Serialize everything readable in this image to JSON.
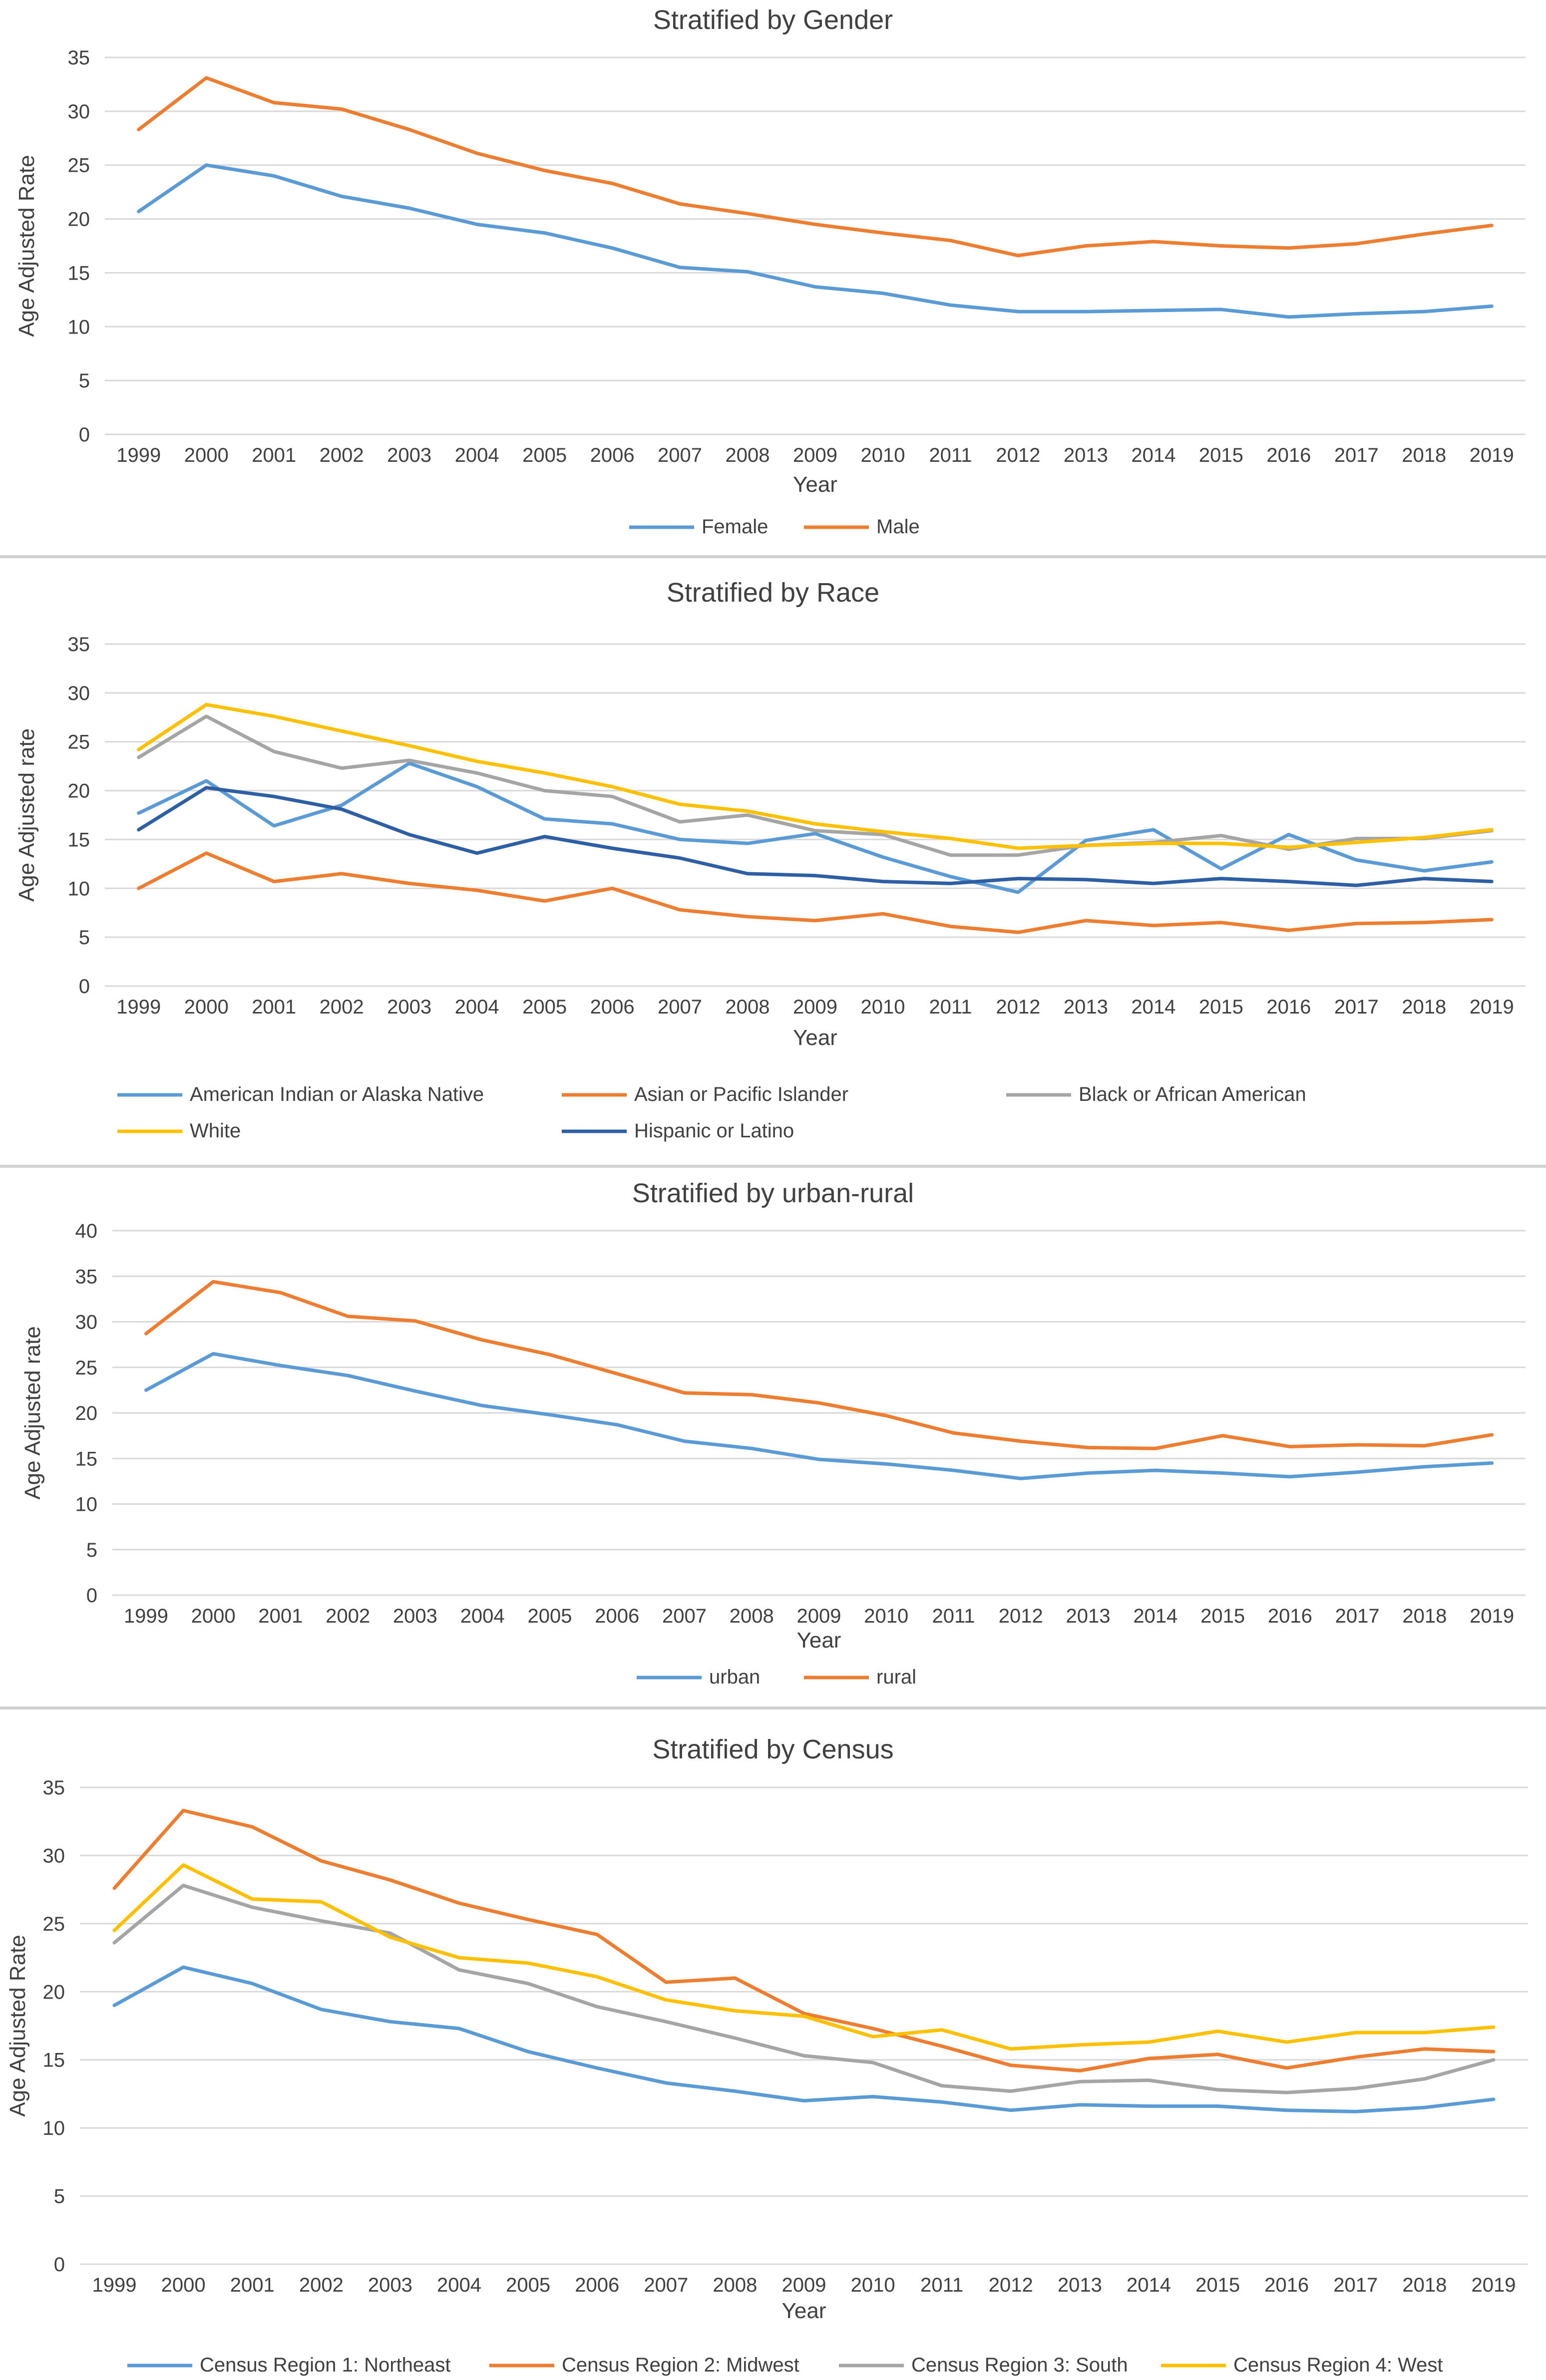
{
  "chart_data": [
    {
      "type": "line",
      "title": "Stratified by Gender",
      "xlabel": "Year",
      "ylabel": "Age Adjusted Rate",
      "ylim": [
        0,
        35
      ],
      "yticks": [
        0,
        5,
        10,
        15,
        20,
        25,
        30,
        35
      ],
      "categories": [
        "1999",
        "2000",
        "2001",
        "2002",
        "2003",
        "2004",
        "2005",
        "2006",
        "2007",
        "2008",
        "2009",
        "2010",
        "2011",
        "2012",
        "2013",
        "2014",
        "2015",
        "2016",
        "2017",
        "2018",
        "2019"
      ],
      "series": [
        {
          "name": "Female",
          "color": "#5b9bd5",
          "values": [
            20.7,
            25.0,
            24.0,
            22.1,
            21.0,
            19.5,
            18.7,
            17.3,
            15.5,
            15.1,
            13.7,
            13.1,
            12.0,
            11.4,
            11.4,
            11.5,
            11.6,
            10.9,
            11.2,
            11.4,
            11.9
          ]
        },
        {
          "name": "Male",
          "color": "#ed7d31",
          "values": [
            28.3,
            33.1,
            30.8,
            30.2,
            28.3,
            26.1,
            24.5,
            23.3,
            21.4,
            20.5,
            19.5,
            18.7,
            18.0,
            16.6,
            17.5,
            17.9,
            17.5,
            17.3,
            17.7,
            18.6,
            19.4
          ]
        }
      ]
    },
    {
      "type": "line",
      "title": "Stratified by Race",
      "xlabel": "Year",
      "ylabel": "Age Adjusted rate",
      "ylim": [
        0,
        35
      ],
      "yticks": [
        0,
        5,
        10,
        15,
        20,
        25,
        30,
        35
      ],
      "categories": [
        "1999",
        "2000",
        "2001",
        "2002",
        "2003",
        "2004",
        "2005",
        "2006",
        "2007",
        "2008",
        "2009",
        "2010",
        "2011",
        "2012",
        "2013",
        "2014",
        "2015",
        "2016",
        "2017",
        "2018",
        "2019"
      ],
      "series": [
        {
          "name": "American Indian or Alaska Native",
          "color": "#5b9bd5",
          "values": [
            17.7,
            21.0,
            16.4,
            18.5,
            22.8,
            20.4,
            17.1,
            16.6,
            15.0,
            14.6,
            15.6,
            13.2,
            11.2,
            9.6,
            14.9,
            16.0,
            12.0,
            15.5,
            12.9,
            11.8,
            12.7
          ]
        },
        {
          "name": "Asian or Pacific Islander",
          "color": "#ed7d31",
          "values": [
            10.0,
            13.6,
            10.7,
            11.5,
            10.5,
            9.8,
            8.7,
            10.0,
            7.8,
            7.1,
            6.7,
            7.4,
            6.1,
            5.5,
            6.7,
            6.2,
            6.5,
            5.7,
            6.4,
            6.5,
            6.8
          ]
        },
        {
          "name": "Black or African American",
          "color": "#a5a5a5",
          "values": [
            23.4,
            27.6,
            24.0,
            22.3,
            23.1,
            21.8,
            20.0,
            19.4,
            16.8,
            17.5,
            15.9,
            15.5,
            13.4,
            13.4,
            14.4,
            14.7,
            15.4,
            14.0,
            15.1,
            15.1,
            15.9
          ]
        },
        {
          "name": "White",
          "color": "#ffc000",
          "values": [
            24.2,
            28.8,
            27.6,
            26.1,
            24.6,
            23.0,
            21.8,
            20.4,
            18.6,
            17.9,
            16.6,
            15.8,
            15.1,
            14.1,
            14.4,
            14.6,
            14.6,
            14.2,
            14.7,
            15.2,
            16.0
          ]
        },
        {
          "name": "Hispanic or Latino",
          "color": "#2e5fa5",
          "values": [
            16.0,
            20.3,
            19.4,
            18.1,
            15.5,
            13.6,
            15.3,
            14.1,
            13.1,
            11.5,
            11.3,
            10.7,
            10.5,
            11.0,
            10.9,
            10.5,
            11.0,
            10.7,
            10.3,
            11.0,
            10.7
          ]
        }
      ]
    },
    {
      "type": "line",
      "title": "Stratified by urban-rural",
      "xlabel": "Year",
      "ylabel": "Age Adjusted rate",
      "ylim": [
        0,
        40
      ],
      "yticks": [
        0,
        5,
        10,
        15,
        20,
        25,
        30,
        35,
        40
      ],
      "categories": [
        "1999",
        "2000",
        "2001",
        "2002",
        "2003",
        "2004",
        "2005",
        "2006",
        "2007",
        "2008",
        "2009",
        "2010",
        "2011",
        "2012",
        "2013",
        "2014",
        "2015",
        "2016",
        "2017",
        "2018",
        "2019"
      ],
      "series": [
        {
          "name": "urban",
          "color": "#5b9bd5",
          "values": [
            22.5,
            26.5,
            25.2,
            24.1,
            22.4,
            20.8,
            19.8,
            18.7,
            16.9,
            16.1,
            14.9,
            14.4,
            13.7,
            12.8,
            13.4,
            13.7,
            13.4,
            13.0,
            13.5,
            14.1,
            14.5
          ]
        },
        {
          "name": "rural",
          "color": "#ed7d31",
          "values": [
            28.7,
            34.4,
            33.2,
            30.6,
            30.1,
            28.0,
            26.4,
            24.3,
            22.2,
            22.0,
            21.1,
            19.7,
            17.8,
            16.9,
            16.2,
            16.1,
            17.5,
            16.3,
            16.5,
            16.4,
            17.6
          ]
        }
      ]
    },
    {
      "type": "line",
      "title": "Stratified by Census",
      "xlabel": "Year",
      "ylabel": "Age Adjusted Rate",
      "ylim": [
        0,
        35
      ],
      "yticks": [
        0,
        5,
        10,
        15,
        20,
        25,
        30,
        35
      ],
      "categories": [
        "1999",
        "2000",
        "2001",
        "2002",
        "2003",
        "2004",
        "2005",
        "2006",
        "2007",
        "2008",
        "2009",
        "2010",
        "2011",
        "2012",
        "2013",
        "2014",
        "2015",
        "2016",
        "2017",
        "2018",
        "2019"
      ],
      "series": [
        {
          "name": "Census Region 1: Northeast",
          "color": "#5b9bd5",
          "values": [
            19.0,
            21.8,
            20.6,
            18.7,
            17.8,
            17.3,
            15.6,
            14.4,
            13.3,
            12.7,
            12.0,
            12.3,
            11.9,
            11.3,
            11.7,
            11.6,
            11.6,
            11.3,
            11.2,
            11.5,
            12.1
          ]
        },
        {
          "name": "Census Region 2: Midwest",
          "color": "#ed7d31",
          "values": [
            27.6,
            33.3,
            32.1,
            29.6,
            28.2,
            26.5,
            25.3,
            24.2,
            20.7,
            21.0,
            18.4,
            17.3,
            16.0,
            14.6,
            14.2,
            15.1,
            15.4,
            14.4,
            15.2,
            15.8,
            15.6
          ]
        },
        {
          "name": "Census Region 3: South",
          "color": "#a5a5a5",
          "values": [
            23.6,
            27.8,
            26.2,
            25.2,
            24.3,
            21.6,
            20.6,
            18.9,
            17.8,
            16.6,
            15.3,
            14.8,
            13.1,
            12.7,
            13.4,
            13.5,
            12.8,
            12.6,
            12.9,
            13.6,
            15.0
          ]
        },
        {
          "name": "Census Region 4: West",
          "color": "#ffc000",
          "values": [
            24.5,
            29.3,
            26.8,
            26.6,
            24.0,
            22.5,
            22.1,
            21.1,
            19.4,
            18.6,
            18.2,
            16.7,
            17.2,
            15.8,
            16.1,
            16.3,
            17.1,
            16.3,
            17.0,
            17.0,
            17.4
          ]
        }
      ]
    }
  ]
}
